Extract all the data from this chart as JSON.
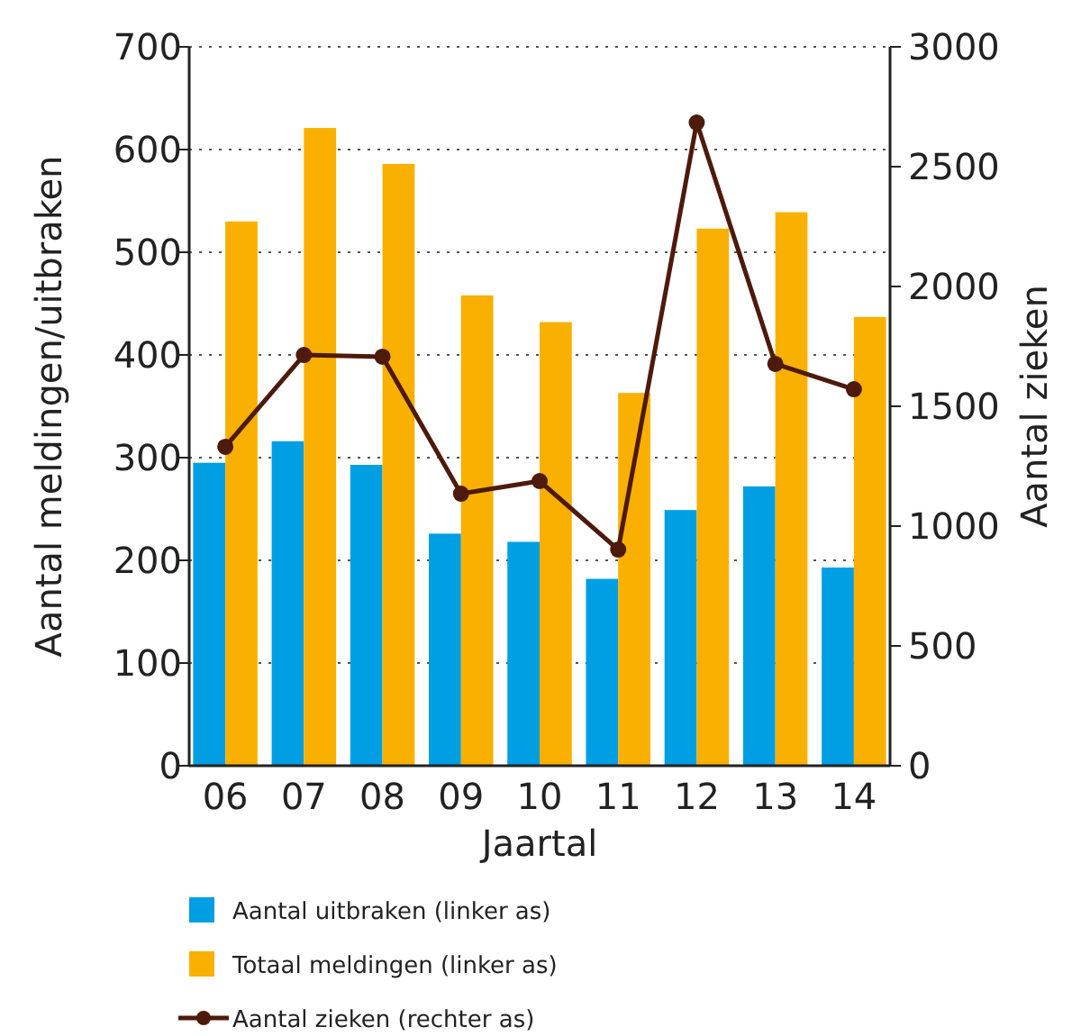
{
  "chart_data": {
    "type": "bar",
    "xlabel": "Jaartal",
    "ylabel": "Aantal meldingen/uitbraken",
    "y2label": "Aantal zieken",
    "categories": [
      "06",
      "07",
      "08",
      "09",
      "10",
      "11",
      "12",
      "13",
      "14"
    ],
    "series": [
      {
        "name": "Aantal uitbraken (linker as)",
        "color": "#009fe3",
        "values": [
          295,
          316,
          293,
          226,
          218,
          182,
          249,
          272,
          193
        ]
      },
      {
        "name": "Totaal meldingen (linker as)",
        "color": "#f9b000",
        "values": [
          530,
          621,
          586,
          458,
          432,
          363,
          523,
          539,
          437
        ]
      },
      {
        "name": "Aantal zieken (rechter as)",
        "type": "line",
        "axis": "y2",
        "color": "#4d1a0b",
        "marker": "circle",
        "values": [
          1331,
          1714,
          1707,
          1135,
          1188,
          902,
          2684,
          1677,
          1571
        ]
      }
    ],
    "ylim": [
      0,
      700
    ],
    "yticks": [
      0,
      100,
      200,
      300,
      400,
      500,
      600,
      700
    ],
    "y2lim": [
      0,
      3000
    ],
    "y2ticks": [
      0,
      500,
      1000,
      1500,
      2000,
      2500,
      3000
    ],
    "grid": "y",
    "legend": "bottom"
  }
}
